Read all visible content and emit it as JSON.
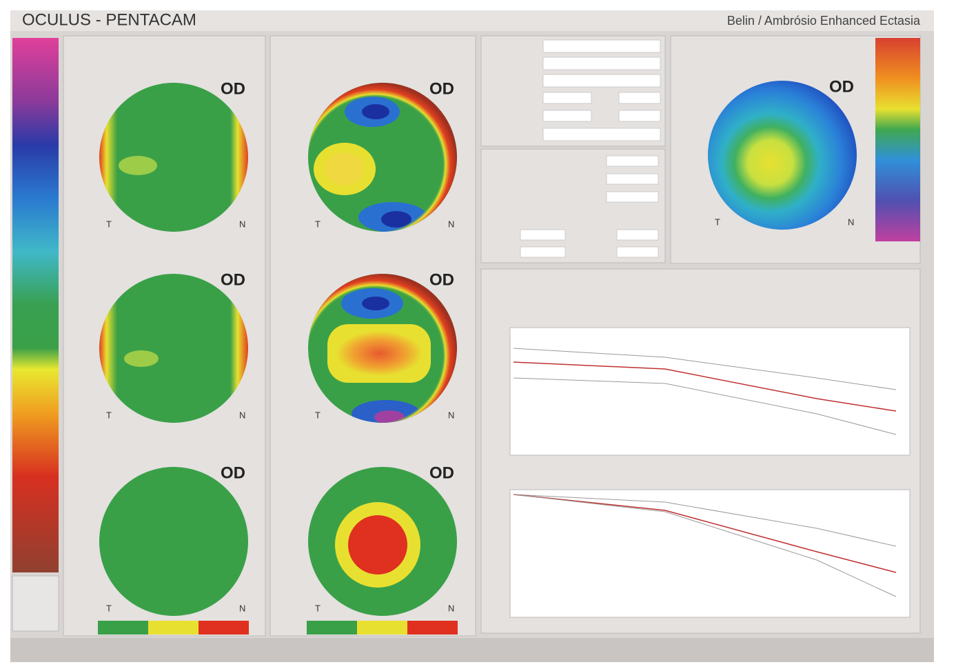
{
  "header": {
    "title": "OCULUS - PENTACAM",
    "subtitle": "Belin / Ambrósio Enhanced Ectasia"
  },
  "maps": [
    {
      "eye": "OD",
      "temporal": "T",
      "nasal": "N"
    },
    {
      "eye": "OD",
      "temporal": "T",
      "nasal": "N"
    },
    {
      "eye": "OD",
      "temporal": "T",
      "nasal": "N"
    },
    {
      "eye": "OD",
      "temporal": "T",
      "nasal": "N"
    },
    {
      "eye": "OD",
      "temporal": "T",
      "nasal": "N"
    },
    {
      "eye": "OD",
      "temporal": "T",
      "nasal": "N"
    },
    {
      "eye": "OD",
      "temporal": "T",
      "nasal": "N"
    }
  ]
}
